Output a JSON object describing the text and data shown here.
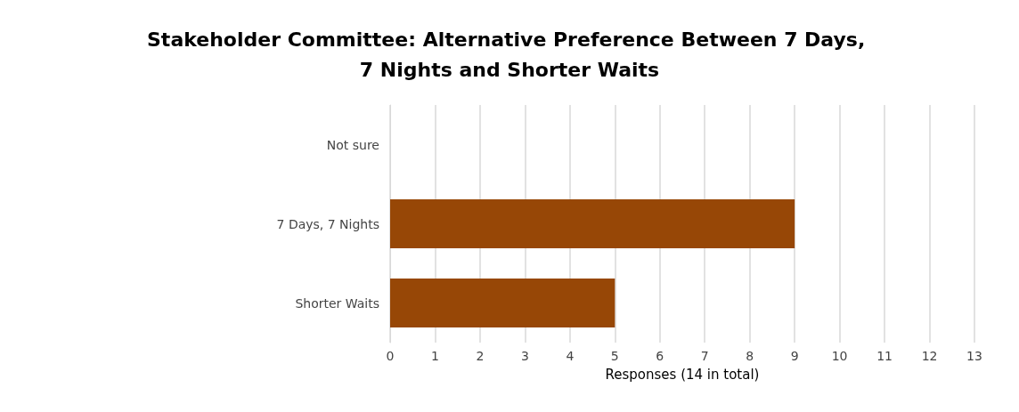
{
  "chart_data": {
    "type": "bar",
    "orientation": "horizontal",
    "title": "Stakeholder Committee: Alternative Preference Between 7 Days, 7 Nights and Shorter Waits",
    "categories": [
      "Not sure",
      "7 Days, 7 Nights",
      "Shorter Waits"
    ],
    "values": [
      0,
      9,
      5
    ],
    "color": "#974706",
    "xlabel": "Responses (14 in total)",
    "xlim": [
      0,
      13
    ],
    "xticks": [
      0,
      1,
      2,
      3,
      4,
      5,
      6,
      7,
      8,
      9,
      10,
      11,
      12,
      13
    ],
    "grid": "x"
  }
}
